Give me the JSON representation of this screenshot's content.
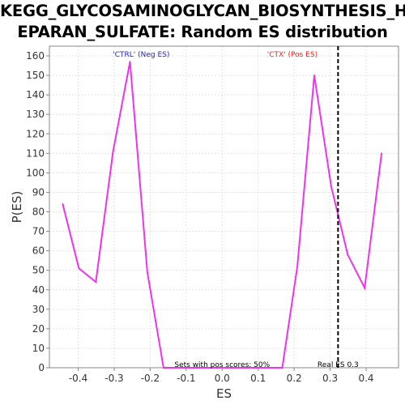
{
  "chart_data": {
    "type": "line",
    "title_line1": "KEGG_GLYCOSAMINOGLYCAN_BIOSYNTHESIS_H",
    "title_line2": "EPARAN_SULFATE: Random ES distribution",
    "xlabel": "ES",
    "ylabel": "P(ES)",
    "xlim": [
      -0.48,
      0.49
    ],
    "ylim": [
      0,
      165
    ],
    "x_ticks": [
      -0.4,
      -0.3,
      -0.2,
      -0.1,
      0.0,
      0.1,
      0.2,
      0.3,
      0.4
    ],
    "x_tick_labels": [
      "-0.4",
      "-0.3",
      "-0.2",
      "-0.1",
      "0.0",
      "0.1",
      "0.2",
      "0.3",
      "0.4"
    ],
    "y_ticks": [
      0,
      10,
      20,
      30,
      40,
      50,
      60,
      70,
      80,
      90,
      100,
      110,
      120,
      130,
      140,
      150,
      160
    ],
    "y_tick_labels": [
      "0",
      "10",
      "20",
      "30",
      "40",
      "50",
      "60",
      "70",
      "80",
      "90",
      "100",
      "110",
      "120",
      "130",
      "140",
      "150",
      "160"
    ],
    "grid": true,
    "series": [
      {
        "color": "#ee33ee",
        "x": [
          -0.443,
          -0.398,
          -0.351,
          -0.303,
          -0.256,
          -0.208,
          -0.163,
          0.167,
          0.209,
          0.256,
          0.303,
          0.349,
          0.396,
          0.443
        ],
        "y": [
          84,
          51,
          44,
          111,
          157,
          49,
          0,
          0,
          52,
          150,
          93,
          58,
          41,
          110
        ]
      }
    ],
    "real_es": 0.322,
    "annotations": {
      "neg_label": "'CTRL' (Neg ES)",
      "pos_label": "'CTX' (Pos ES)",
      "sets_label": "Sets with pos scores: 50%",
      "real_es_label": "Real ES 0.3"
    },
    "colors": {
      "neg": "#2222bb",
      "pos": "#ee2222",
      "line": "#ee33ee",
      "real_es_line": "#000000"
    }
  }
}
